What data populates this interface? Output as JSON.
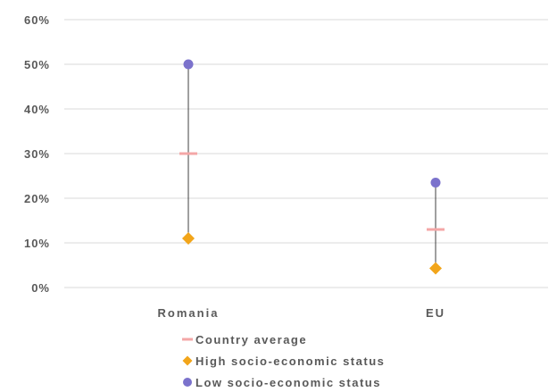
{
  "chart_data": {
    "type": "scatter",
    "categories": [
      "Romania",
      "EU"
    ],
    "ylim": [
      0,
      0.6
    ],
    "yticks": [
      0,
      0.1,
      0.2,
      0.3,
      0.4,
      0.5,
      0.6
    ],
    "ytick_labels": [
      "0%",
      "10%",
      "20%",
      "30%",
      "40%",
      "50%",
      "60%"
    ],
    "grid": true,
    "legend_position": "bottom",
    "range_lines": true,
    "series": [
      {
        "name": "Country average",
        "marker": "dash",
        "color": "#F4A7A7",
        "values": [
          0.3,
          0.13
        ]
      },
      {
        "name": "High socio-economic status",
        "marker": "diamond",
        "color": "#F2A51A",
        "values": [
          0.11,
          0.043
        ]
      },
      {
        "name": "Low socio-economic status",
        "marker": "circle",
        "color": "#7B72CC",
        "values": [
          0.5,
          0.235
        ]
      }
    ],
    "colors": {
      "gridline": "#D9D9D9",
      "range_line": "#404040",
      "text": "#595959"
    }
  }
}
